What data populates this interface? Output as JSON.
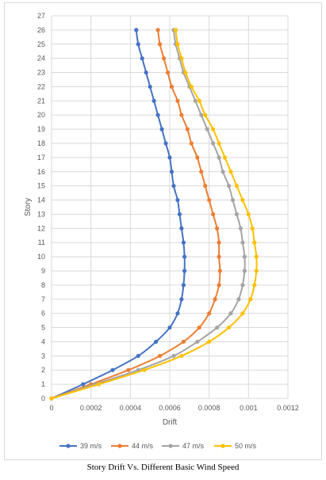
{
  "caption": "Story Drift Vs.  Different Basic Wind Speed",
  "chart_data": {
    "type": "line",
    "title": "",
    "xlabel": "Drift",
    "ylabel": "Story",
    "xlim": [
      0,
      0.0012
    ],
    "ylim": [
      0,
      27
    ],
    "x_ticks": [
      "0",
      "0.0002",
      "0.0004",
      "0.0006",
      "0.0008",
      "0.001",
      "0.0012"
    ],
    "y_ticks": [
      "0",
      "1",
      "2",
      "3",
      "4",
      "5",
      "6",
      "7",
      "8",
      "9",
      "10",
      "11",
      "12",
      "13",
      "14",
      "15",
      "16",
      "17",
      "18",
      "19",
      "20",
      "21",
      "22",
      "23",
      "24",
      "25",
      "26",
      "27"
    ],
    "grid": true,
    "legend_position": "bottom",
    "stories": [
      0,
      1,
      2,
      3,
      4,
      5,
      6,
      7,
      8,
      9,
      10,
      11,
      12,
      13,
      14,
      15,
      16,
      17,
      18,
      19,
      20,
      21,
      22,
      23,
      24,
      25,
      26
    ],
    "series": [
      {
        "name": "39 m/s",
        "color": "#4472c4",
        "drift": [
          0,
          0.00016,
          0.00031,
          0.00044,
          0.00053,
          0.0006,
          0.00064,
          0.00066,
          0.00067,
          0.000675,
          0.000675,
          0.00067,
          0.00066,
          0.00065,
          0.00064,
          0.00062,
          0.00061,
          0.0006,
          0.00058,
          0.00056,
          0.00054,
          0.00052,
          0.0005,
          0.00048,
          0.00046,
          0.00044,
          0.00043
        ]
      },
      {
        "name": "44 m/s",
        "color": "#ed7d31",
        "drift": [
          0,
          0.0002,
          0.00039,
          0.00055,
          0.00067,
          0.00075,
          0.0008,
          0.00083,
          0.00085,
          0.000855,
          0.00085,
          0.00085,
          0.00084,
          0.00082,
          0.0008,
          0.00078,
          0.00076,
          0.00074,
          0.00071,
          0.00069,
          0.00066,
          0.00064,
          0.00061,
          0.00059,
          0.00057,
          0.00055,
          0.00054
        ]
      },
      {
        "name": "47 m/s",
        "color": "#a5a5a5",
        "drift": [
          0,
          0.00022,
          0.00044,
          0.00062,
          0.00074,
          0.00084,
          0.00091,
          0.00095,
          0.00097,
          0.00098,
          0.00098,
          0.00097,
          0.00096,
          0.00094,
          0.00092,
          0.0009,
          0.00087,
          0.00085,
          0.00082,
          0.00079,
          0.00076,
          0.00073,
          0.0007,
          0.00067,
          0.00065,
          0.00063,
          0.00062
        ]
      },
      {
        "name": "50 m/s",
        "color": "#ffc000",
        "drift": [
          0,
          0.00024,
          0.00047,
          0.00066,
          0.0008,
          0.0009,
          0.00097,
          0.00101,
          0.00103,
          0.00104,
          0.00104,
          0.00103,
          0.00102,
          0.001,
          0.00097,
          0.00094,
          0.00091,
          0.00088,
          0.00085,
          0.00082,
          0.00078,
          0.00075,
          0.00071,
          0.00068,
          0.00066,
          0.00064,
          0.00063
        ]
      }
    ]
  }
}
